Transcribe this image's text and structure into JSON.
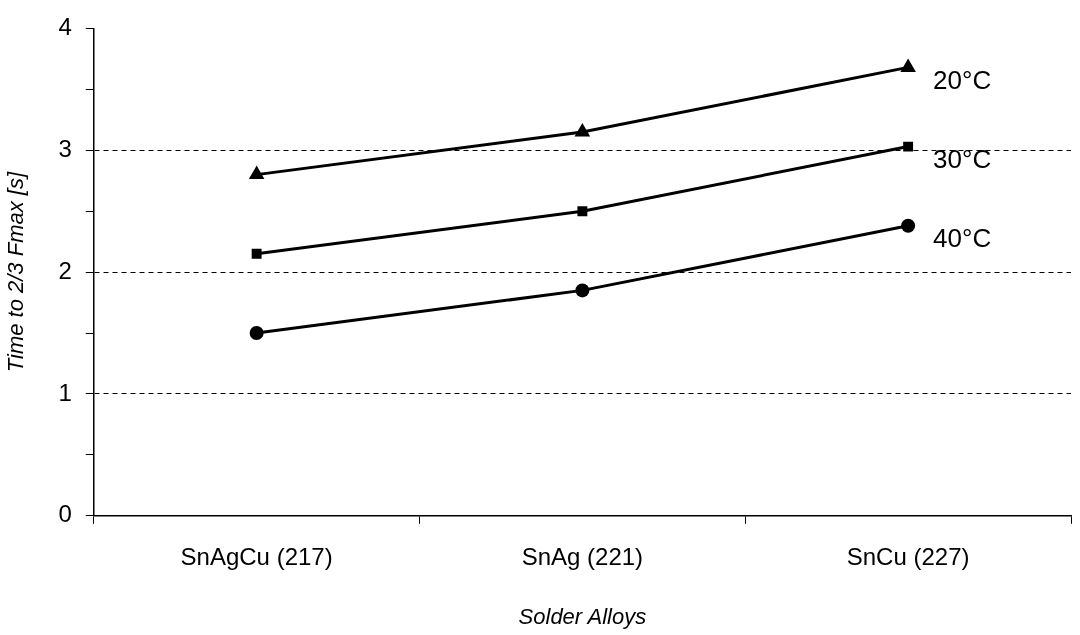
{
  "chart_data": {
    "type": "line",
    "xlabel": "Solder Alloys",
    "ylabel": "Time to 2/3 Fmax [s]",
    "categories": [
      "SnAgCu (217)",
      "SnAg (221)",
      "SnCu (227)"
    ],
    "series": [
      {
        "name": "20°C",
        "color": "#000000",
        "marker": "triangle",
        "values": [
          2.8,
          3.15,
          3.68
        ]
      },
      {
        "name": "30°C",
        "color": "#000000",
        "marker": "square",
        "values": [
          2.15,
          2.5,
          3.03
        ]
      },
      {
        "name": "40°C",
        "color": "#000000",
        "marker": "circle",
        "values": [
          1.5,
          1.85,
          2.38
        ]
      }
    ],
    "ylim": [
      0,
      4
    ],
    "yticks": [
      0,
      {
        "value": 0.5,
        "label": null
      },
      1,
      {
        "value": 1.5,
        "label": null
      },
      2,
      {
        "value": 2.5,
        "label": null
      },
      3,
      {
        "value": 3.5,
        "label": null
      },
      4
    ],
    "grid": "y",
    "line_style": "solid",
    "legend": false
  }
}
